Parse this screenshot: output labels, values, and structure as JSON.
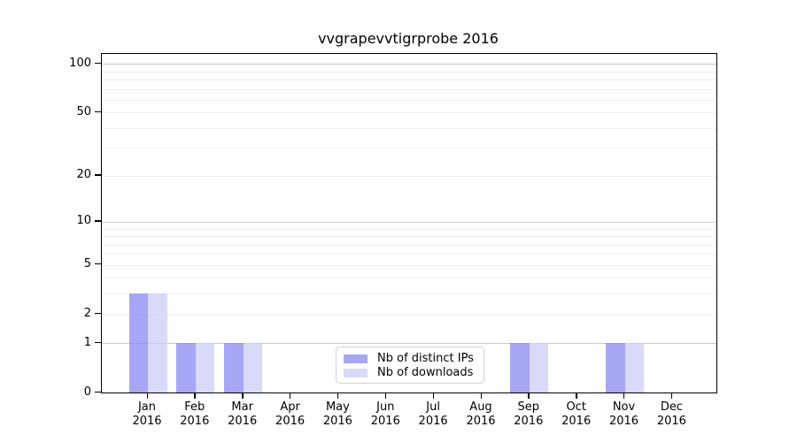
{
  "title": "vvgrapevvtigrprobe 2016",
  "legend": {
    "position": "lower center",
    "items": [
      {
        "label": "Nb of distinct IPs",
        "color": "rgba(136,136,242,0.75)"
      },
      {
        "label": "Nb of downloads",
        "color": "rgba(204,204,248,0.75)"
      }
    ]
  },
  "chart_data": {
    "type": "bar",
    "title": "vvgrapevvtigrprobe 2016",
    "categories": [
      "Jan 2016",
      "Feb 2016",
      "Mar 2016",
      "Apr 2016",
      "May 2016",
      "Jun 2016",
      "Jul 2016",
      "Aug 2016",
      "Sep 2016",
      "Oct 2016",
      "Nov 2016",
      "Dec 2016"
    ],
    "x_tick_month": [
      "Jan",
      "Feb",
      "Mar",
      "Apr",
      "May",
      "Jun",
      "Jul",
      "Aug",
      "Sep",
      "Oct",
      "Nov",
      "Dec"
    ],
    "x_tick_year": "2016",
    "series": [
      {
        "name": "Nb of distinct IPs",
        "color": "rgba(136,136,242,0.75)",
        "values": [
          3,
          1,
          1,
          0,
          0,
          0,
          0,
          0,
          1,
          0,
          1,
          0
        ]
      },
      {
        "name": "Nb of downloads",
        "color": "rgba(204,204,248,0.75)",
        "values": [
          3,
          1,
          1,
          0,
          0,
          0,
          0,
          0,
          1,
          0,
          1,
          0
        ]
      }
    ],
    "xlabel": "",
    "ylabel": "",
    "yscale": "log1p",
    "ylim": [
      0,
      115
    ],
    "y_tick_values": [
      0,
      1,
      2,
      5,
      10,
      20,
      50,
      100
    ],
    "y_gridlines_major": [
      1,
      10,
      100
    ],
    "y_gridlines_minor": [
      2,
      3,
      4,
      5,
      6,
      7,
      8,
      9,
      20,
      30,
      40,
      50,
      60,
      70,
      80,
      90
    ],
    "grid": true,
    "legend_position": "lower center",
    "colors": {
      "grid_major": "#c9c9c9",
      "grid_minor": "#ededed",
      "spine": "#000000",
      "background": "#ffffff"
    }
  }
}
